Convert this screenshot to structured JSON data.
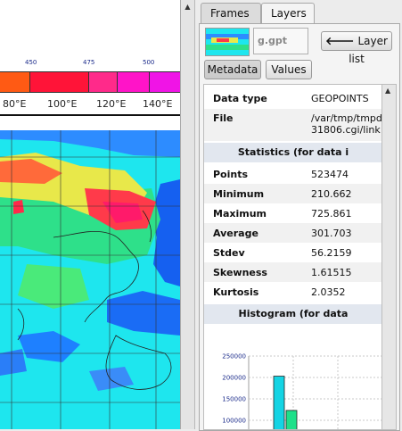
{
  "map": {
    "colorbar_ticks": [
      "450",
      "475",
      "500"
    ],
    "colorbar_colors": [
      "#ff5a14",
      "#ff1438",
      "#ff2a8a",
      "#ff14c8",
      "#f014e6"
    ],
    "longitude_labels": [
      "80°E",
      "100°E",
      "120°E",
      "140°E"
    ]
  },
  "tabs": [
    {
      "label": "Frames",
      "active": false
    },
    {
      "label": "Layers",
      "active": true
    }
  ],
  "layer": {
    "file_name": "g.gpt",
    "layer_list_label": "Layer list",
    "metadata_label": "Metadata",
    "values_label": "Values"
  },
  "metadata": {
    "data_type_key": "Data type",
    "data_type_value": "GEOPOINTS",
    "file_key": "File",
    "file_value_line1": "/var/tmp/tmpd",
    "file_value_line2": "31806.cgi/link",
    "statistics_header": "Statistics (for data i",
    "stats": [
      {
        "key": "Points",
        "value": "523474"
      },
      {
        "key": "Minimum",
        "value": "210.662"
      },
      {
        "key": "Maximum",
        "value": "725.861"
      },
      {
        "key": "Average",
        "value": "301.703"
      },
      {
        "key": "Stdev",
        "value": "56.2159"
      },
      {
        "key": "Skewness",
        "value": "1.61515"
      },
      {
        "key": "Kurtosis",
        "value": "2.0352"
      }
    ],
    "histogram_header": "Histogram (for data"
  },
  "histogram": {
    "y_ticks": [
      "250000",
      "200000",
      "150000",
      "100000"
    ],
    "ylim": [
      75000,
      250000
    ],
    "bars": [
      {
        "value": 203000,
        "color": "#14d4e4"
      },
      {
        "value": 123000,
        "color": "#1ee08a"
      }
    ]
  }
}
